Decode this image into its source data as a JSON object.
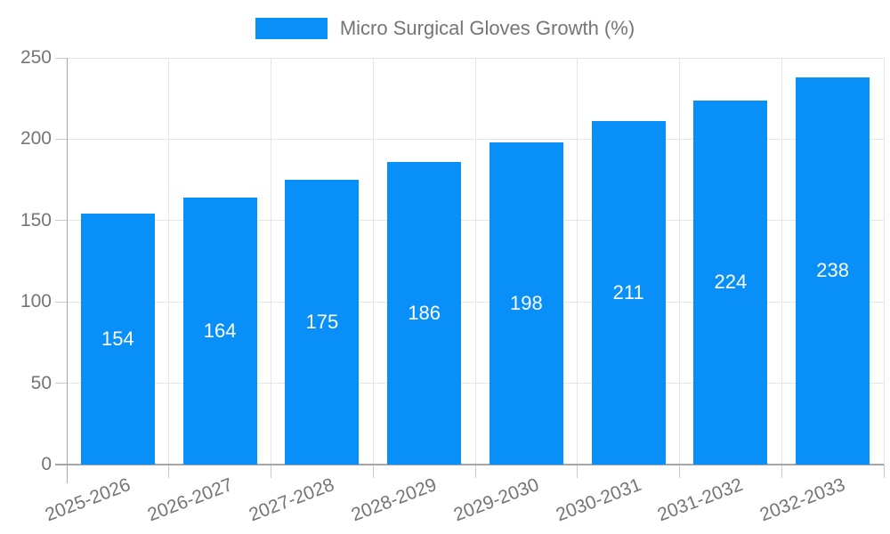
{
  "legend": {
    "label": "Micro Surgical Gloves Growth (%)"
  },
  "colors": {
    "bar": "#0890F8",
    "bar_label": "#ffffff",
    "tick_label": "#757575",
    "legend_text": "#757575",
    "gridline": "#e6e6e6",
    "axis": "#a6a6a6",
    "minor_tick": "#c9c9c9"
  },
  "chart_data": {
    "type": "bar",
    "title": "Micro Surgical Gloves Growth (%)",
    "categories": [
      "2025-2026",
      "2026-2027",
      "2027-2028",
      "2028-2029",
      "2029-2030",
      "2030-2031",
      "2031-2032",
      "2032-2033"
    ],
    "values": [
      154,
      164,
      175,
      186,
      198,
      211,
      224,
      238
    ],
    "xlabel": "",
    "ylabel": "",
    "ylim": [
      0,
      250
    ],
    "yticks": [
      0,
      50,
      100,
      150,
      200,
      250
    ],
    "grid": true,
    "legend_position": "top-center",
    "bar_labels_inside": true,
    "x_label_rotation_deg": -21
  }
}
